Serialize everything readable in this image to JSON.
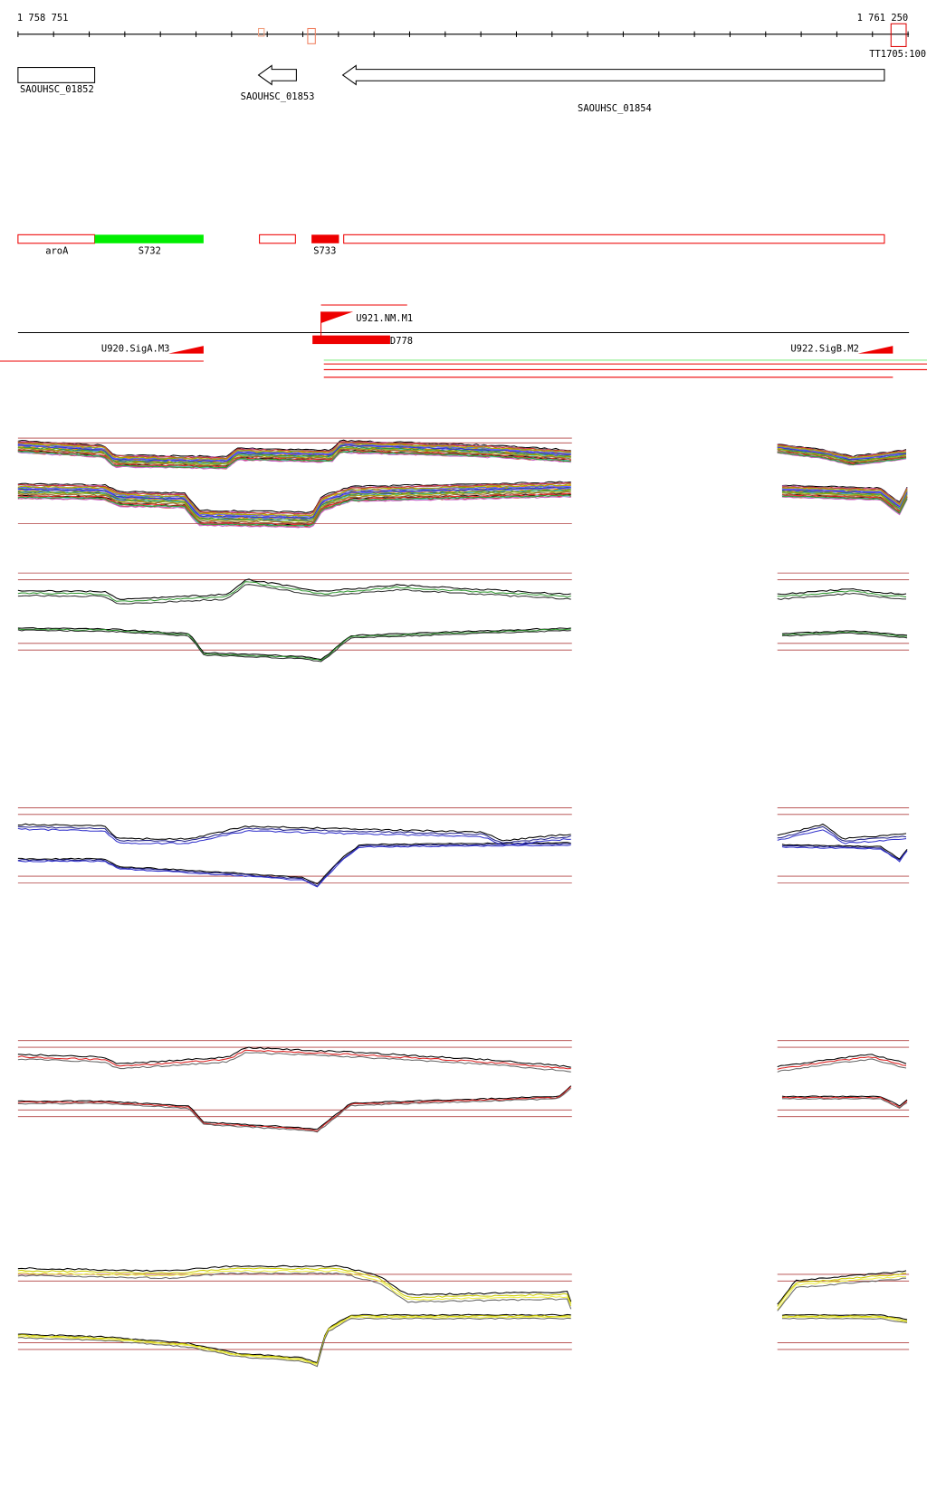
{
  "ruler": {
    "start": "1 758 751",
    "end": "1 761 250",
    "marker": "TT1705:100"
  },
  "genes": [
    {
      "label": "SAOUHSC_01852"
    },
    {
      "label": "SAOUHSC_01853"
    },
    {
      "label": "SAOUHSC_01854"
    }
  ],
  "features": [
    {
      "label": "aroA"
    },
    {
      "label": "S732"
    },
    {
      "label": "S733"
    }
  ],
  "regulators": [
    {
      "label": "U921.NM.M1"
    },
    {
      "label": "D778"
    },
    {
      "label": "U920.SigA.M3"
    },
    {
      "label": "U922.SigB.M2"
    }
  ]
}
